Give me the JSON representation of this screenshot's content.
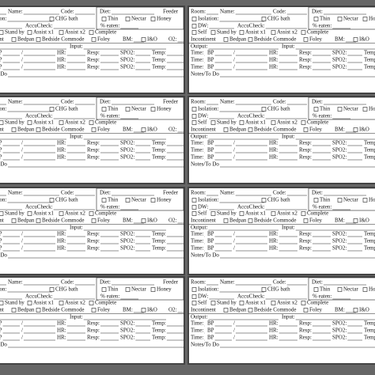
{
  "card": {
    "room": "Room:",
    "name": "Name:",
    "code": "Code:",
    "diet": "Diet:",
    "feeder": "Feeder",
    "isolation": "Isolation:",
    "chg_bath": "CHG bath",
    "thin": "Thin",
    "nectar": "Nectar",
    "honey": "Honey",
    "dw": "DW:",
    "accucheck": "AccuCheck:",
    "percent_eaten": "% eaten:",
    "self": "Self",
    "stand_by": "Stand by",
    "assist_x1": "Assist x1",
    "assist_x2": "Assist x2",
    "complete": "Complete",
    "incontinent": "Incontinent",
    "bedpan": "Bedpan",
    "bedside_commode": "Bedside Commode",
    "foley": "Foley",
    "bm": "BM:",
    "io": "I&O",
    "o2": "O2:",
    "output": "Output:",
    "input": "Input:",
    "vitals": {
      "time": "Time:",
      "bp": "BP",
      "slash": "/",
      "hr": "HR:",
      "resp": "Resp:",
      "spo2": "SPO2:",
      "temp": "Temp:"
    },
    "notes": "Notes/To Do"
  }
}
